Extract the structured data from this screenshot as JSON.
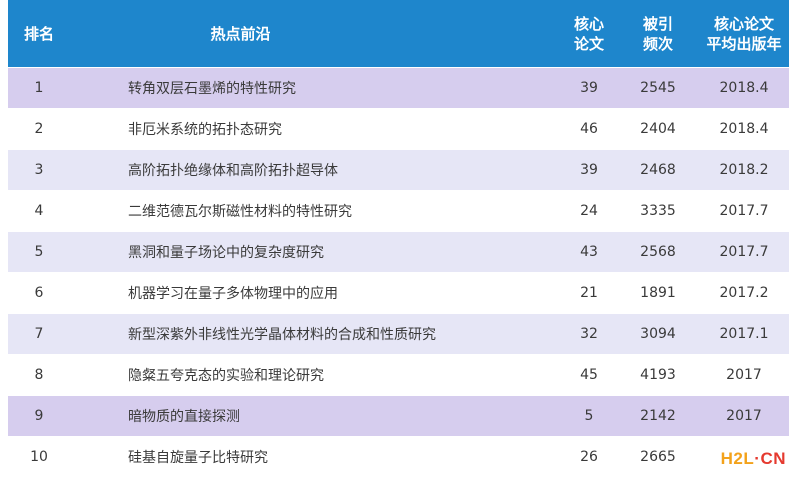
{
  "header": {
    "rank": "排名",
    "topic": "热点前沿",
    "core_papers_l1": "核心",
    "core_papers_l2": "论文",
    "citations_l1": "被引",
    "citations_l2": "频次",
    "avg_year_l1": "核心论文",
    "avg_year_l2": "平均出版年"
  },
  "rows": [
    {
      "rank": "1",
      "topic": "转角双层石墨烯的特性研究",
      "core_papers": "39",
      "citations": "2545",
      "avg_year": "2018.4"
    },
    {
      "rank": "2",
      "topic": "非厄米系统的拓扑态研究",
      "core_papers": "46",
      "citations": "2404",
      "avg_year": "2018.4"
    },
    {
      "rank": "3",
      "topic": "高阶拓扑绝缘体和高阶拓扑超导体",
      "core_papers": "39",
      "citations": "2468",
      "avg_year": "2018.2"
    },
    {
      "rank": "4",
      "topic": "二维范德瓦尔斯磁性材料的特性研究",
      "core_papers": "24",
      "citations": "3335",
      "avg_year": "2017.7"
    },
    {
      "rank": "5",
      "topic": "黑洞和量子场论中的复杂度研究",
      "core_papers": "43",
      "citations": "2568",
      "avg_year": "2017.7"
    },
    {
      "rank": "6",
      "topic": "机器学习在量子多体物理中的应用",
      "core_papers": "21",
      "citations": "1891",
      "avg_year": "2017.2"
    },
    {
      "rank": "7",
      "topic": "新型深紫外非线性光学晶体材料的合成和性质研究",
      "core_papers": "32",
      "citations": "3094",
      "avg_year": "2017.1"
    },
    {
      "rank": "8",
      "topic": "隐粲五夸克态的实验和理论研究",
      "core_papers": "45",
      "citations": "4193",
      "avg_year": "2017"
    },
    {
      "rank": "9",
      "topic": "暗物质的直接探测",
      "core_papers": "5",
      "citations": "2142",
      "avg_year": "2017"
    },
    {
      "rank": "10",
      "topic": "硅基自旋量子比特研究",
      "core_papers": "26",
      "citations": "2665",
      "avg_year": ""
    }
  ],
  "watermark": {
    "part1": "H2L",
    "part2": "·CN"
  },
  "colors": {
    "header_bg": "#1e86cc",
    "highlight_row": "#d6cdee",
    "alt_row": "#e6e6f6"
  }
}
